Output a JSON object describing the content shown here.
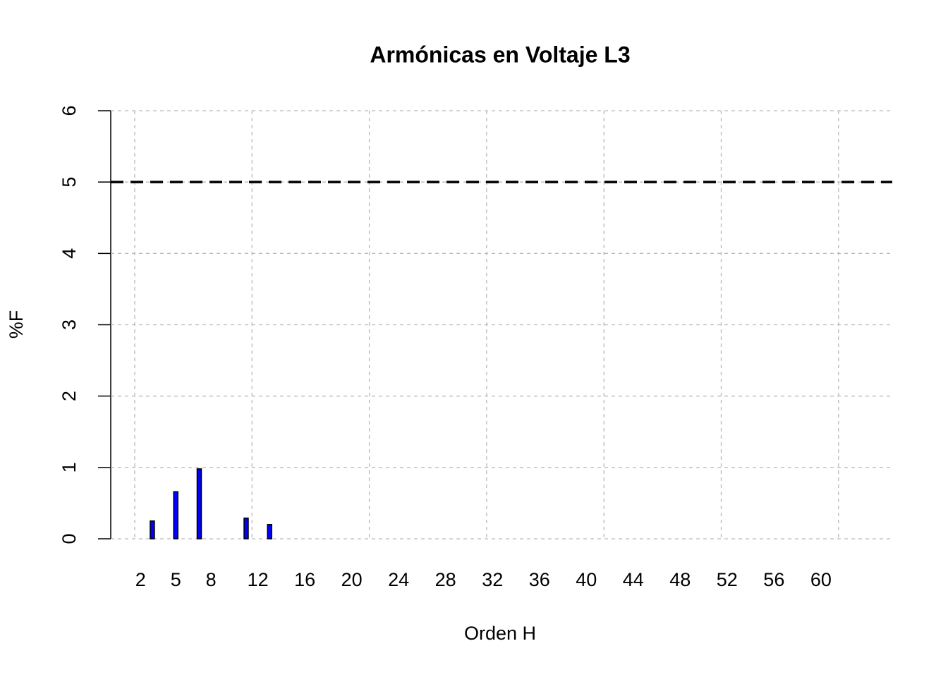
{
  "chart_data": {
    "type": "bar",
    "title": "Armónicas en Voltaje L3",
    "xlabel": "Orden H",
    "ylabel": "%F",
    "categories": [
      "2",
      null,
      null,
      "5",
      null,
      null,
      "8",
      null,
      null,
      null,
      "12",
      null,
      null,
      null,
      "16",
      null,
      null,
      null,
      "20",
      null,
      null,
      null,
      "24",
      null,
      null,
      null,
      "28",
      null,
      null,
      null,
      "32",
      null,
      null,
      null,
      "36",
      null,
      null,
      null,
      "40",
      null,
      null,
      null,
      "44",
      null,
      null,
      null,
      "48",
      null,
      null,
      null,
      "52",
      null,
      null,
      null,
      "56",
      null,
      null,
      null,
      "60",
      null,
      null,
      null
    ],
    "values": [
      0,
      0.25,
      0,
      0.66,
      0,
      0.98,
      0,
      0,
      0,
      0.29,
      0,
      0.2,
      0,
      0,
      0,
      0,
      0,
      0,
      0,
      0,
      0,
      0,
      0,
      0,
      0,
      0,
      0,
      0,
      0,
      0,
      0,
      0,
      0,
      0,
      0,
      0,
      0,
      0,
      0,
      0,
      0,
      0,
      0,
      0,
      0,
      0,
      0,
      0,
      0,
      0,
      0,
      0,
      0,
      0,
      0,
      0,
      0,
      0,
      0,
      0,
      0,
      0
    ],
    "color": "#0000ff",
    "ylim": [
      0,
      6
    ],
    "yticks": [
      0,
      1,
      2,
      3,
      4,
      5,
      6
    ],
    "grid": true,
    "hline": 5
  }
}
